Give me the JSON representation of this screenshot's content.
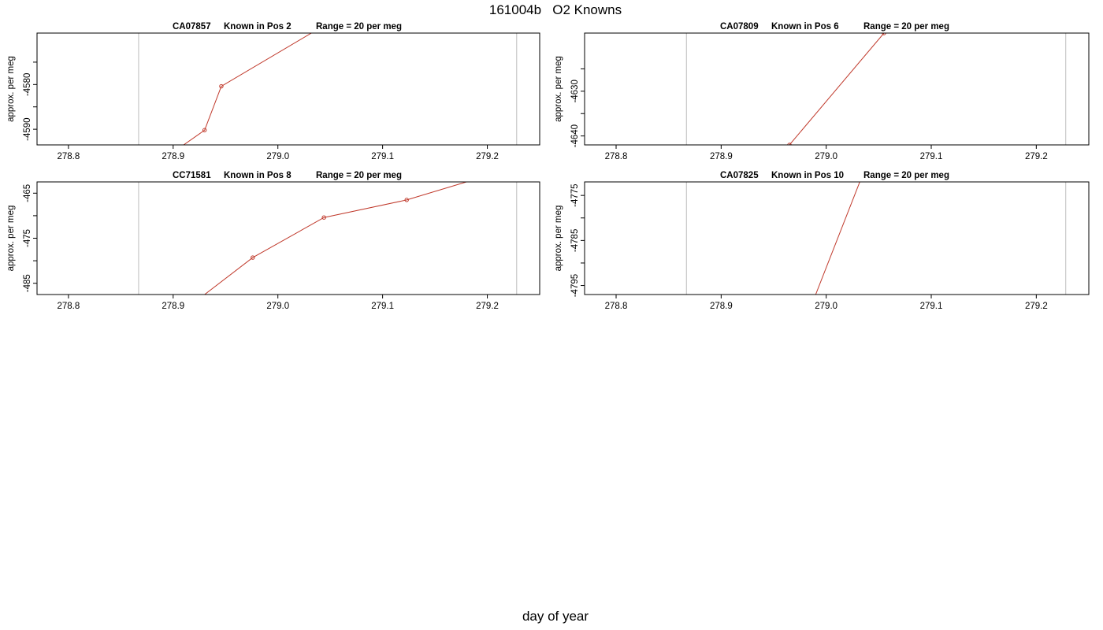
{
  "main_title": "161004b   O2 Knowns",
  "x_axis_title": "day of year",
  "chart_data": [
    {
      "type": "line",
      "id": "CA07857",
      "label": "Known in Pos 2",
      "range_text": "Range = 20 per meg",
      "ylabel": "approx. per meg",
      "xlim": [
        278.77,
        279.25
      ],
      "ylim": [
        -4593.5,
        -4568.5
      ],
      "x_ticks": [
        278.8,
        278.9,
        279.0,
        279.1,
        279.2
      ],
      "x_tick_labels": [
        "278.8",
        "278.9",
        "279.0",
        "279.1",
        "279.2"
      ],
      "y_ticks": [
        -4590,
        -4585,
        -4580,
        -4575
      ],
      "y_tick_labels": [
        "-4590",
        "",
        "-4580",
        ""
      ],
      "vlines": [
        278.867,
        279.228
      ],
      "series": [
        {
          "color": "#c0392b",
          "points": [
            [
              278.91,
              -4593.5
            ],
            [
              278.93,
              -4590.2
            ],
            [
              278.946,
              -4580.4
            ],
            [
              279.032,
              -4568.5
            ]
          ],
          "markers": [
            [
              278.93,
              -4590.2
            ],
            [
              278.946,
              -4580.4
            ]
          ]
        }
      ]
    },
    {
      "type": "line",
      "id": "CA07809",
      "label": "Known in Pos 6",
      "range_text": "Range = 20 per meg",
      "ylabel": "approx. per meg",
      "xlim": [
        278.77,
        279.25
      ],
      "ylim": [
        -4642,
        -4617
      ],
      "x_ticks": [
        278.8,
        278.9,
        279.0,
        279.1,
        279.2
      ],
      "x_tick_labels": [
        "278.8",
        "278.9",
        "279.0",
        "279.1",
        "279.2"
      ],
      "y_ticks": [
        -4640,
        -4635,
        -4630,
        -4625
      ],
      "y_tick_labels": [
        "-4640",
        "",
        "-4630",
        ""
      ],
      "vlines": [
        278.867,
        279.228
      ],
      "series": [
        {
          "color": "#c0392b",
          "points": [
            [
              278.965,
              -4642
            ],
            [
              279.055,
              -4617
            ]
          ],
          "markers": [
            [
              278.965,
              -4642
            ],
            [
              279.055,
              -4617
            ]
          ]
        }
      ]
    },
    {
      "type": "line",
      "id": "CC71581",
      "label": "Known in Pos 8",
      "range_text": "Range = 20 per meg",
      "ylabel": "approx. per meg",
      "xlim": [
        278.77,
        279.25
      ],
      "ylim": [
        -487.5,
        -462.5
      ],
      "x_ticks": [
        278.8,
        278.9,
        279.0,
        279.1,
        279.2
      ],
      "x_tick_labels": [
        "278.8",
        "278.9",
        "279.0",
        "279.1",
        "279.2"
      ],
      "y_ticks": [
        -485,
        -480,
        -475,
        -470,
        -465
      ],
      "y_tick_labels": [
        "-485",
        "",
        "-475",
        "",
        "-465"
      ],
      "vlines": [
        278.867,
        279.228
      ],
      "series": [
        {
          "color": "#c0392b",
          "points": [
            [
              278.93,
              -487.5
            ],
            [
              278.976,
              -479.3
            ],
            [
              279.044,
              -470.4
            ],
            [
              279.123,
              -466.5
            ],
            [
              279.18,
              -462.5
            ]
          ],
          "markers": [
            [
              278.976,
              -479.3
            ],
            [
              279.044,
              -470.4
            ],
            [
              279.123,
              -466.5
            ]
          ]
        }
      ]
    },
    {
      "type": "line",
      "id": "CA07825",
      "label": "Known in Pos 10",
      "range_text": "Range = 20 per meg",
      "ylabel": "approx. per meg",
      "xlim": [
        278.77,
        279.25
      ],
      "ylim": [
        -4797,
        -4772
      ],
      "x_ticks": [
        278.8,
        278.9,
        279.0,
        279.1,
        279.2
      ],
      "x_tick_labels": [
        "278.8",
        "278.9",
        "279.0",
        "279.1",
        "279.2"
      ],
      "y_ticks": [
        -4795,
        -4790,
        -4785,
        -4780,
        -4775
      ],
      "y_tick_labels": [
        "-4795",
        "",
        "-4785",
        "",
        "-4775"
      ],
      "vlines": [
        278.867,
        279.228
      ],
      "series": [
        {
          "color": "#c0392b",
          "points": [
            [
              278.99,
              -4797
            ],
            [
              279.032,
              -4772
            ]
          ],
          "markers": []
        }
      ]
    }
  ]
}
